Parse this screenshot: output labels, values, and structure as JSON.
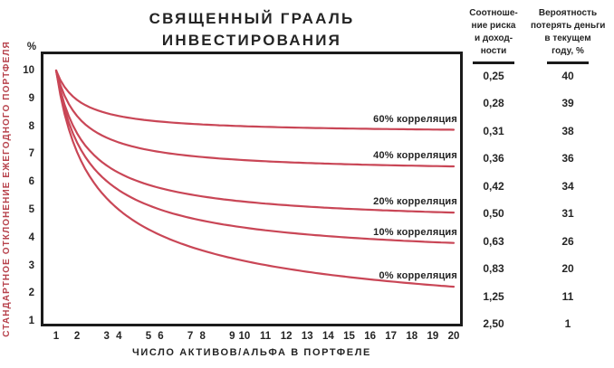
{
  "title": {
    "line1": "СВЯЩЕННЫЙ ГРААЛЬ",
    "line2": "ИНВЕСТИРОВАНИЯ"
  },
  "chart_data": {
    "type": "line",
    "title": "СВЯЩЕННЫЙ ГРААЛЬ ИНВЕСТИРОВАНИЯ",
    "xlabel": "ЧИСЛО АКТИВОВ/АЛЬФА В ПОРТФЕЛЕ",
    "ylabel": "СТАНДАРТНОЕ ОТКЛОНЕНИЕ ЕЖЕГОДНОГО ПОРТФЕЛЯ",
    "y_unit": "%",
    "x": [
      1,
      2,
      3,
      4,
      5,
      6,
      7,
      8,
      9,
      10,
      11,
      12,
      13,
      14,
      15,
      16,
      17,
      18,
      19,
      20
    ],
    "xlim": [
      1,
      20
    ],
    "ylim": [
      1,
      10
    ],
    "y_ticks": [
      10,
      9,
      8,
      7,
      6,
      5,
      4,
      3,
      2,
      1
    ],
    "grid": false,
    "legend_position": "inline-right",
    "line_color": "#c94656",
    "series": [
      {
        "name": "60% корреляция",
        "correlation": 0.6,
        "values": [
          10.0,
          8.94,
          8.56,
          8.37,
          8.25,
          8.16,
          8.11,
          8.06,
          8.03,
          8.0,
          7.98,
          7.96,
          7.94,
          7.93,
          7.92,
          7.91,
          7.9,
          7.89,
          7.88,
          7.87
        ]
      },
      {
        "name": "40% корреляция",
        "correlation": 0.4,
        "values": [
          10.0,
          8.37,
          7.75,
          7.42,
          7.21,
          7.07,
          6.97,
          6.89,
          6.83,
          6.78,
          6.74,
          6.71,
          6.68,
          6.65,
          6.63,
          6.61,
          6.6,
          6.58,
          6.57,
          6.56
        ]
      },
      {
        "name": "20% корреляция",
        "correlation": 0.2,
        "values": [
          10.0,
          7.75,
          6.83,
          6.32,
          6.0,
          5.77,
          5.61,
          5.48,
          5.37,
          5.29,
          5.22,
          5.16,
          5.11,
          5.07,
          5.03,
          5.0,
          4.97,
          4.94,
          4.92,
          4.9
        ]
      },
      {
        "name": "10% корреляция",
        "correlation": 0.1,
        "values": [
          10.0,
          7.42,
          6.32,
          5.7,
          5.29,
          5.0,
          4.78,
          4.61,
          4.47,
          4.36,
          4.26,
          4.18,
          4.11,
          4.05,
          4.0,
          3.95,
          3.91,
          3.87,
          3.84,
          3.81
        ]
      },
      {
        "name": "0% корреляция",
        "correlation": 0.0,
        "values": [
          10.0,
          7.07,
          5.77,
          5.0,
          4.47,
          4.08,
          3.78,
          3.54,
          3.33,
          3.16,
          3.02,
          2.89,
          2.77,
          2.67,
          2.58,
          2.5,
          2.43,
          2.36,
          2.29,
          2.24
        ]
      }
    ]
  },
  "risk_table": {
    "col1_header": [
      "Соотноше-",
      "ние риска",
      "и доход-",
      "ности"
    ],
    "col2_header": [
      "Вероятность",
      "потерять деньги",
      "в текущем",
      "году, %"
    ],
    "rows": [
      {
        "ratio": "0,25",
        "loss": "40"
      },
      {
        "ratio": "0,28",
        "loss": "39"
      },
      {
        "ratio": "0,31",
        "loss": "38"
      },
      {
        "ratio": "0,36",
        "loss": "36"
      },
      {
        "ratio": "0,42",
        "loss": "34"
      },
      {
        "ratio": "0,50",
        "loss": "31"
      },
      {
        "ratio": "0,63",
        "loss": "26"
      },
      {
        "ratio": "0,83",
        "loss": "20"
      },
      {
        "ratio": "1,25",
        "loss": "11"
      },
      {
        "ratio": "2,50",
        "loss": "1"
      }
    ]
  }
}
